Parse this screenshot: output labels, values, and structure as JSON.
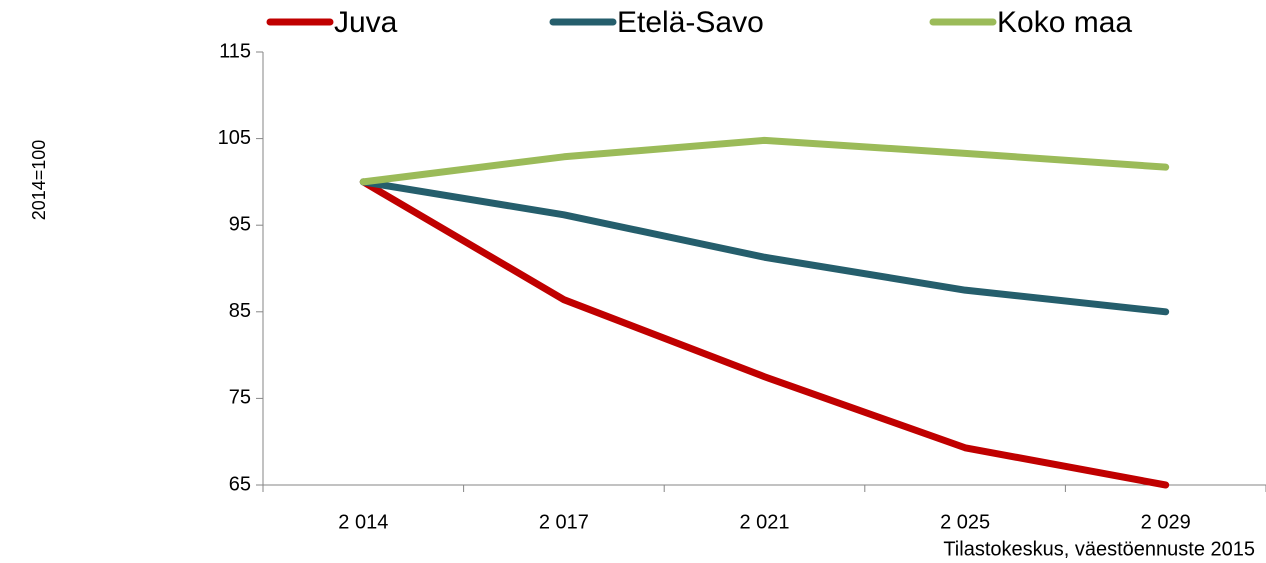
{
  "chart_data": {
    "type": "line",
    "y_label": "2014=100",
    "source": "Tilastokeskus, väestöennuste 2015",
    "categories": [
      "2 014",
      "2 017",
      "2 021",
      "2 025",
      "2 029"
    ],
    "series": [
      {
        "name": "Juva",
        "color": "#c00000",
        "values": [
          100,
          86.4,
          77.5,
          69.3,
          65
        ]
      },
      {
        "name": "Etelä-Savo",
        "color": "#255e6c",
        "values": [
          100,
          96.2,
          91.3,
          87.5,
          85
        ]
      },
      {
        "name": "Koko maa",
        "color": "#9bbb59",
        "values": [
          100,
          102.9,
          104.8,
          103.3,
          101.7
        ]
      }
    ],
    "ylim": [
      65,
      115
    ],
    "yticks": [
      65,
      75,
      85,
      95,
      105,
      115
    ],
    "grid": false,
    "legend": "top"
  }
}
